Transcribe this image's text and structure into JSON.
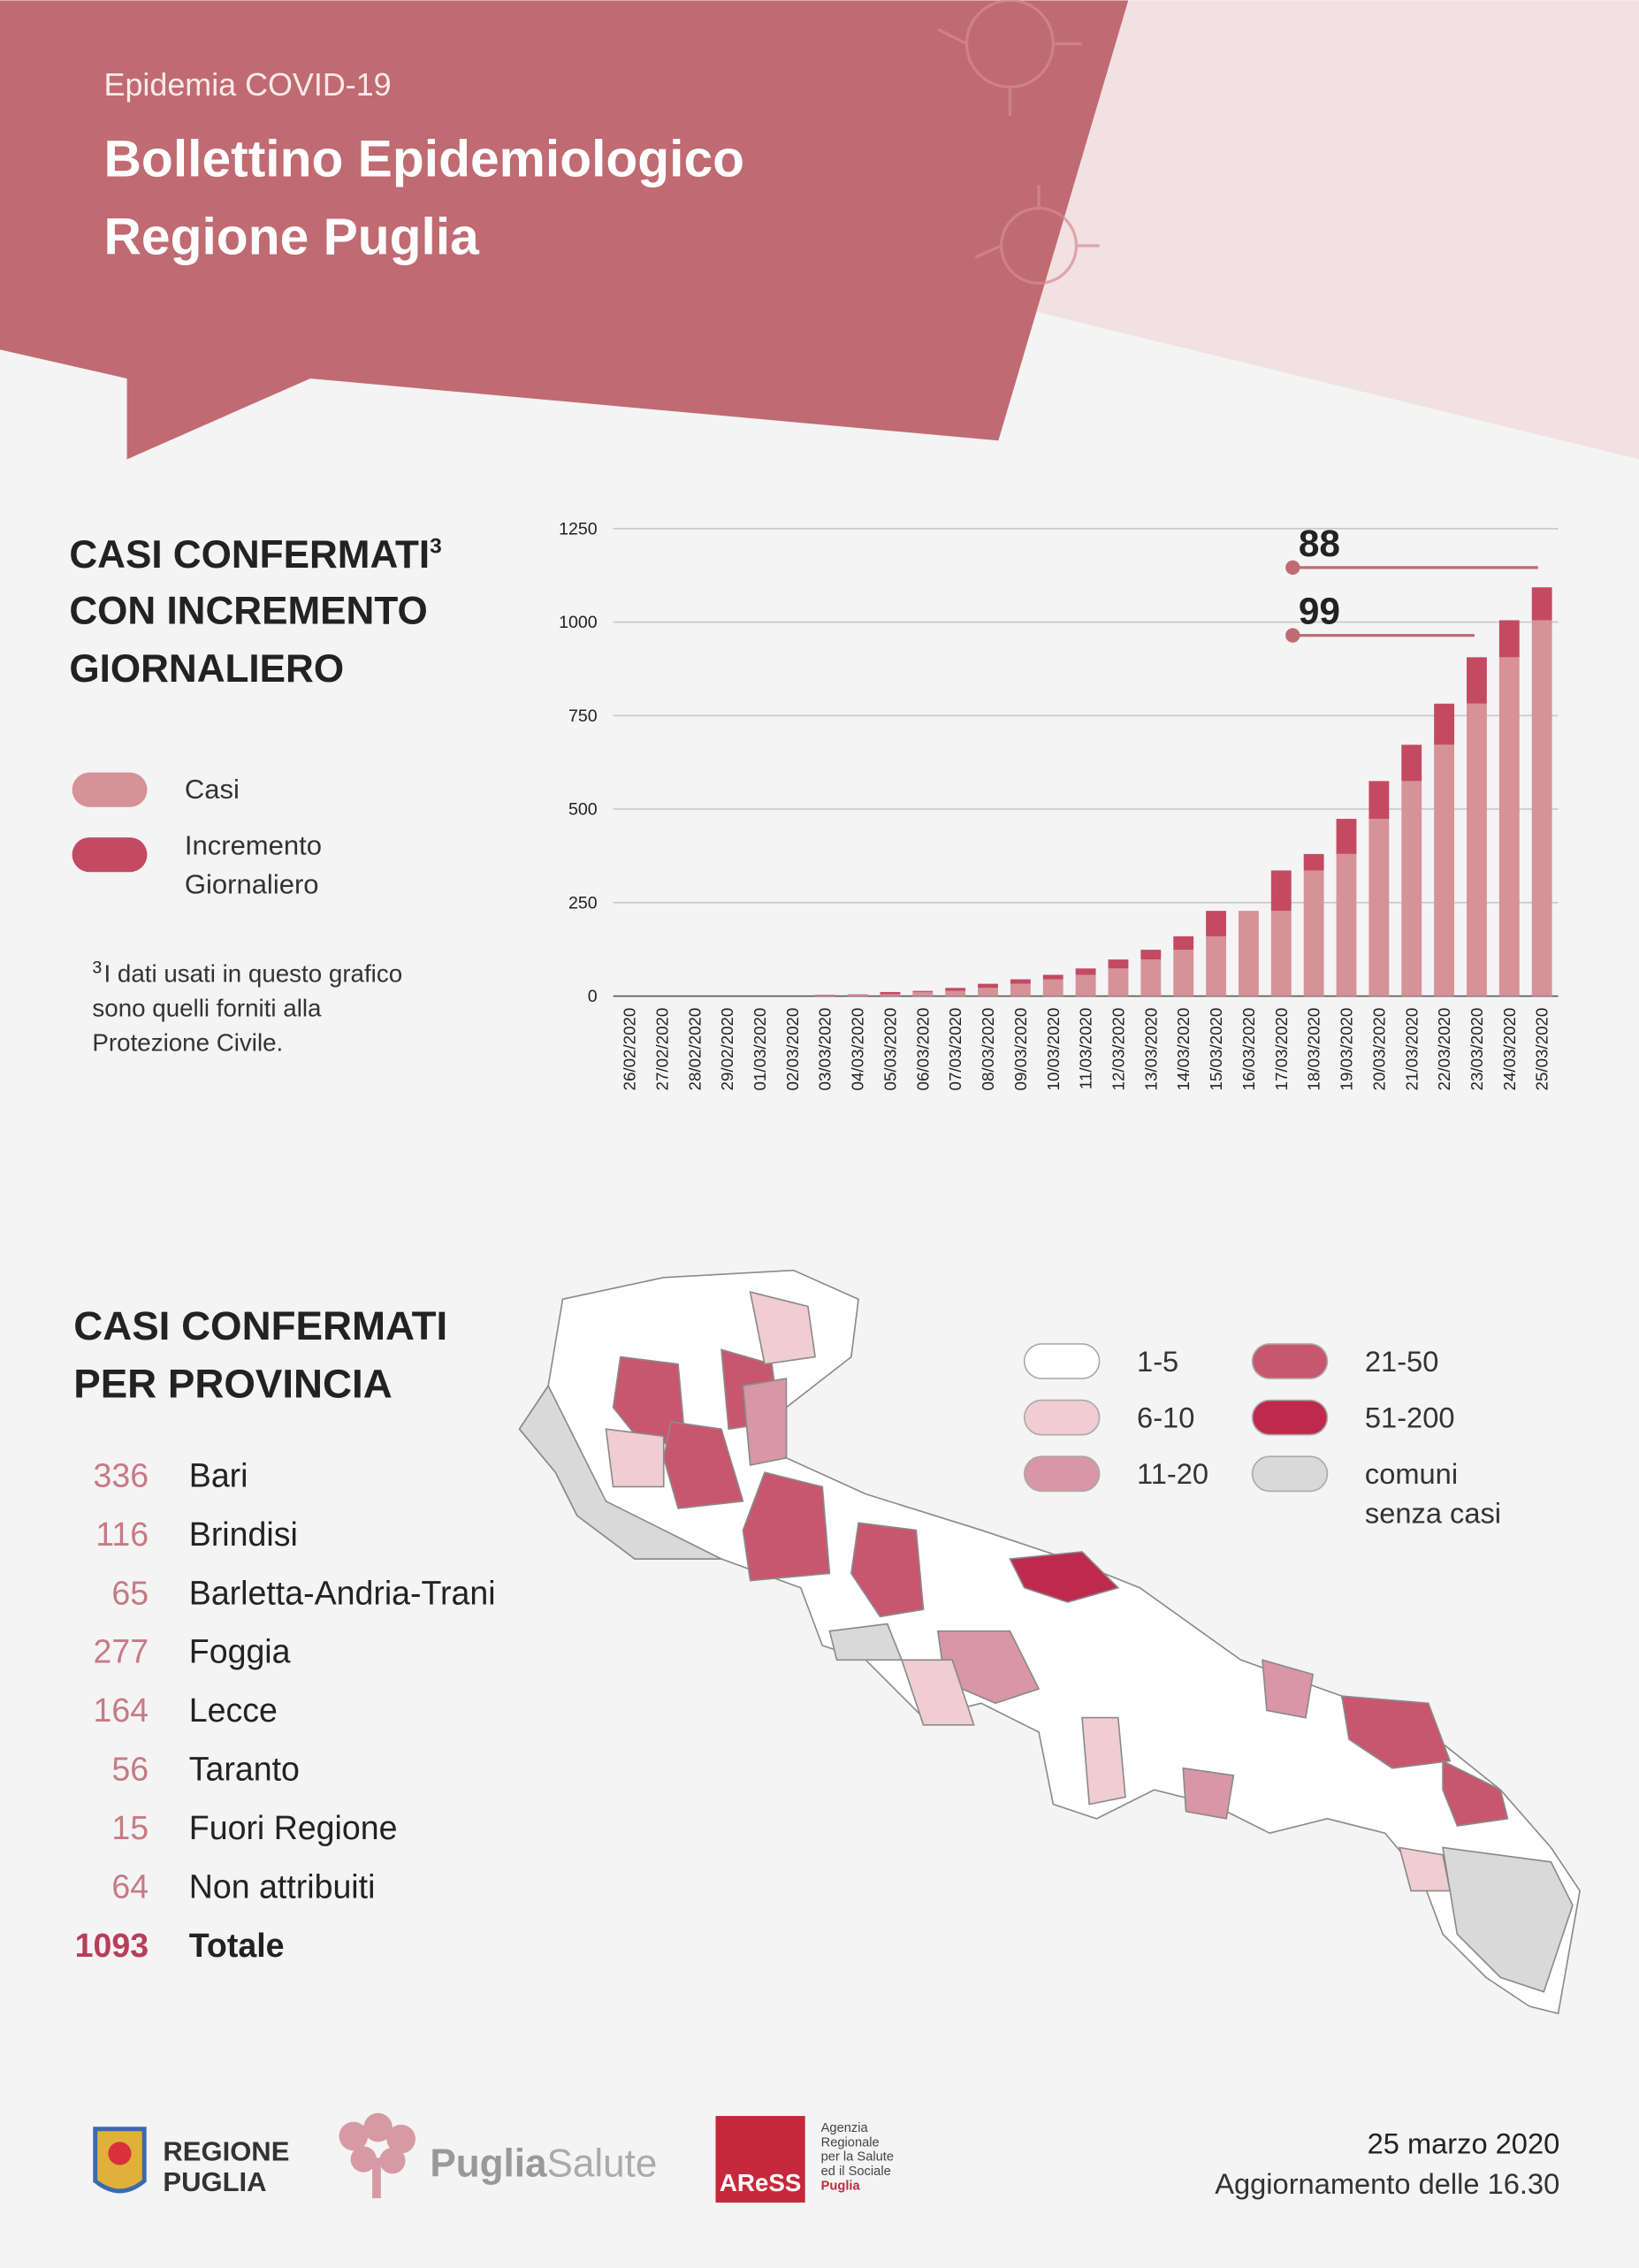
{
  "header": {
    "kicker": "Epidemia COVID-19",
    "title_lines": [
      "Bollettino Epidemiologico",
      "Regione Puglia"
    ]
  },
  "chart_data": {
    "type": "bar",
    "stacked": true,
    "title_lines": [
      "CASI CONFERMATI",
      "CON INCREMENTO",
      "GIORNALIERO"
    ],
    "footnote": {
      "mark": "3",
      "text_lines": [
        "I dati usati in questo grafico",
        "sono quelli forniti alla",
        "Protezione Civile."
      ]
    },
    "categories": [
      "26/02/2020",
      "27/02/2020",
      "28/02/2020",
      "29/02/2020",
      "01/03/2020",
      "02/03/2020",
      "03/03/2020",
      "04/03/2020",
      "05/03/2020",
      "06/03/2020",
      "07/03/2020",
      "08/03/2020",
      "09/03/2020",
      "10/03/2020",
      "11/03/2020",
      "12/03/2020",
      "13/03/2020",
      "14/03/2020",
      "15/03/2020",
      "16/03/2020",
      "17/03/2020",
      "18/03/2020",
      "19/03/2020",
      "20/03/2020",
      "21/03/2020",
      "22/03/2020",
      "23/03/2020",
      "24/03/2020",
      "25/03/2020"
    ],
    "series": [
      {
        "name": "Casi",
        "color": "#d69199",
        "values": [
          0,
          0,
          0,
          0,
          0,
          0,
          3,
          4,
          5,
          11,
          14,
          22,
          33,
          45,
          57,
          74,
          98,
          124,
          160,
          228,
          228,
          336,
          380,
          474,
          575,
          672,
          782,
          906,
          1005
        ]
      },
      {
        "name": "Incremento Giornaliero",
        "color": "#c34a62",
        "values": [
          0,
          0,
          0,
          0,
          0,
          0,
          1,
          1,
          6,
          3,
          8,
          11,
          12,
          12,
          17,
          24,
          26,
          36,
          68,
          0,
          108,
          44,
          94,
          101,
          97,
          110,
          124,
          99,
          88
        ]
      }
    ],
    "ylim": [
      0,
      1250
    ],
    "yticks": [
      0,
      250,
      500,
      750,
      1000,
      1250
    ],
    "grid": true
  },
  "provinces": {
    "title_lines": [
      "CASI CONFERMATI",
      "PER PROVINCIA"
    ],
    "rows": [
      {
        "count": 336,
        "name": "Bari"
      },
      {
        "count": 116,
        "name": "Brindisi"
      },
      {
        "count": 65,
        "name": "Barletta-Andria-Trani"
      },
      {
        "count": 277,
        "name": "Foggia"
      },
      {
        "count": 164,
        "name": "Lecce"
      },
      {
        "count": 56,
        "name": "Taranto"
      },
      {
        "count": 15,
        "name": "Fuori Regione"
      },
      {
        "count": 64,
        "name": "Non attribuiti"
      }
    ],
    "total": {
      "count": 1093,
      "name": "Totale"
    }
  },
  "map_legend": [
    {
      "label": "1-5",
      "color": "#ffffff"
    },
    {
      "label": "6-10",
      "color": "#f0cdd1"
    },
    {
      "label": "11-20",
      "color": "#d896a6"
    },
    {
      "label": "21-50",
      "color": "#c8566f"
    },
    {
      "label": "51-200",
      "color": "#be2a4e"
    },
    {
      "label": "comuni senza casi",
      "color": "#d9d9d9"
    }
  ],
  "footer": {
    "regione": [
      "REGIONE",
      "PUGLIA"
    ],
    "puglia_salute": [
      "Puglia",
      "Salute"
    ],
    "aress": {
      "name": "AReSS",
      "lines": [
        "Agenzia",
        "Regionale",
        "per la Salute",
        "ed il Sociale",
        "Puglia"
      ]
    },
    "date": "25 marzo 2020",
    "update": "Aggiornamento delle 16.30"
  }
}
